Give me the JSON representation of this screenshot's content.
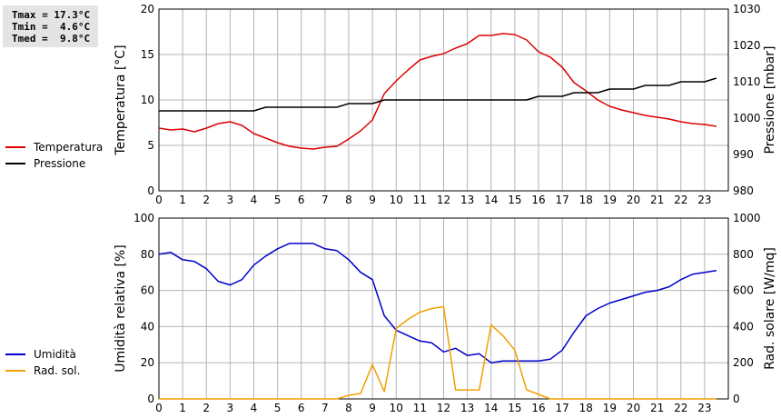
{
  "stats": {
    "tmax": "Tmax = 17.3°C",
    "tmin": "Tmin =  4.6°C",
    "tmed": "Tmed =  9.8°C"
  },
  "colors": {
    "temperature": "#dd0000",
    "pressure": "#000000",
    "humidity": "#0000cc",
    "radiation": "#f0a000",
    "grid": "#b4b4b4"
  },
  "chart_data": [
    {
      "type": "line",
      "title": "",
      "xlabel": "",
      "x_ticks": [
        "0",
        "1",
        "2",
        "3",
        "4",
        "5",
        "6",
        "7",
        "8",
        "9",
        "10",
        "11",
        "12",
        "13",
        "14",
        "15",
        "16",
        "17",
        "18",
        "19",
        "20",
        "21",
        "22",
        "23"
      ],
      "xlim": [
        0,
        24
      ],
      "ylabel_left": "Temperatura [°C]",
      "ylim_left": [
        0,
        20
      ],
      "yticks_left": [
        "0",
        "5",
        "10",
        "15",
        "20"
      ],
      "ylabel_right": "Pressione [mbar]",
      "ylim_right": [
        980,
        1030
      ],
      "yticks_right": [
        "980",
        "990",
        "1000",
        "1010",
        "1020",
        "1030"
      ],
      "grid": true,
      "legend": "left",
      "series": [
        {
          "name": "Temperatura",
          "axis": "left",
          "x": [
            0,
            0.5,
            1,
            1.5,
            2,
            2.5,
            3,
            3.5,
            4,
            4.5,
            5,
            5.5,
            6,
            6.5,
            7,
            7.5,
            8,
            8.5,
            9,
            9.5,
            10,
            10.5,
            11,
            11.5,
            12,
            12.5,
            13,
            13.5,
            14,
            14.5,
            15,
            15.5,
            16,
            16.5,
            17,
            17.5,
            18,
            18.5,
            19,
            19.5,
            20,
            20.5,
            21,
            21.5,
            22,
            22.5,
            23,
            23.5
          ],
          "values": [
            6.9,
            6.7,
            6.8,
            6.5,
            6.9,
            7.4,
            7.6,
            7.2,
            6.3,
            5.8,
            5.3,
            4.9,
            4.7,
            4.6,
            4.8,
            4.9,
            5.7,
            6.6,
            7.8,
            10.7,
            12.1,
            13.3,
            14.4,
            14.8,
            15.1,
            15.7,
            16.2,
            17.1,
            17.1,
            17.3,
            17.2,
            16.6,
            15.3,
            14.7,
            13.6,
            11.9,
            11.0,
            10.0,
            9.3,
            8.9,
            8.6,
            8.3,
            8.1,
            7.9,
            7.6,
            7.4,
            7.3,
            7.1
          ]
        },
        {
          "name": "Pressione",
          "axis": "right",
          "x": [
            0,
            1,
            2,
            3,
            4,
            4.5,
            5,
            5.5,
            6,
            6.5,
            7,
            7.5,
            8,
            8.5,
            9,
            9.5,
            10,
            11,
            12,
            13,
            14,
            15,
            15.5,
            16,
            16.5,
            17,
            17.5,
            18,
            18.5,
            19,
            19.5,
            20,
            20.5,
            21,
            21.5,
            22,
            22.5,
            23,
            23.5
          ],
          "values": [
            1002,
            1002,
            1002,
            1002,
            1002,
            1003,
            1003,
            1003,
            1003,
            1003,
            1003,
            1003,
            1004,
            1004,
            1004,
            1005,
            1005,
            1005,
            1005,
            1005,
            1005,
            1005,
            1005,
            1006,
            1006,
            1006,
            1007,
            1007,
            1007,
            1008,
            1008,
            1008,
            1009,
            1009,
            1009,
            1010,
            1010,
            1010,
            1011
          ]
        }
      ]
    },
    {
      "type": "line",
      "title": "",
      "xlabel": "",
      "x_ticks": [
        "0",
        "1",
        "2",
        "3",
        "4",
        "5",
        "6",
        "7",
        "8",
        "9",
        "10",
        "11",
        "12",
        "13",
        "14",
        "15",
        "16",
        "17",
        "18",
        "19",
        "20",
        "21",
        "22",
        "23"
      ],
      "xlim": [
        0,
        24
      ],
      "ylabel_left": "Umidità relativa [%]",
      "ylim_left": [
        0,
        100
      ],
      "yticks_left": [
        "0",
        "20",
        "40",
        "60",
        "80",
        "100"
      ],
      "ylabel_right": "Rad. solare [W/mq]",
      "ylim_right": [
        0,
        1000
      ],
      "yticks_right": [
        "0",
        "200",
        "400",
        "600",
        "800",
        "1000"
      ],
      "grid": true,
      "legend": "left",
      "series": [
        {
          "name": "Umidità",
          "axis": "left",
          "x": [
            0,
            0.5,
            1,
            1.5,
            2,
            2.5,
            3,
            3.5,
            4,
            4.5,
            5,
            5.5,
            6,
            6.5,
            7,
            7.5,
            8,
            8.5,
            9,
            9.5,
            10,
            10.5,
            11,
            11.5,
            12,
            12.5,
            13,
            13.5,
            14,
            14.5,
            15,
            15.5,
            16,
            16.5,
            17,
            17.5,
            18,
            18.5,
            19,
            19.5,
            20,
            20.5,
            21,
            21.5,
            22,
            22.5,
            23,
            23.5
          ],
          "values": [
            80,
            81,
            77,
            76,
            72,
            65,
            63,
            66,
            74,
            79,
            83,
            86,
            86,
            86,
            83,
            82,
            77,
            70,
            66,
            46,
            38,
            35,
            32,
            31,
            26,
            28,
            24,
            25,
            20,
            21,
            21,
            21,
            21,
            22,
            27,
            37,
            46,
            50,
            53,
            55,
            57,
            59,
            60,
            62,
            66,
            69,
            70,
            71
          ]
        },
        {
          "name": "Rad. sol.",
          "axis": "right",
          "x": [
            0,
            1,
            2,
            3,
            4,
            5,
            6,
            7,
            7.5,
            8,
            8.5,
            9,
            9.5,
            10,
            10.5,
            11,
            11.5,
            12,
            12.5,
            13,
            13.5,
            14,
            14.5,
            15,
            15.5,
            16,
            16.5,
            17,
            18,
            19,
            20,
            21,
            22,
            23,
            23.5
          ],
          "values": [
            0,
            0,
            0,
            0,
            0,
            0,
            0,
            0,
            0,
            20,
            30,
            190,
            40,
            390,
            440,
            480,
            500,
            510,
            50,
            50,
            50,
            410,
            350,
            270,
            50,
            25,
            0,
            0,
            0,
            0,
            0,
            0,
            0,
            0,
            0
          ]
        }
      ]
    }
  ]
}
